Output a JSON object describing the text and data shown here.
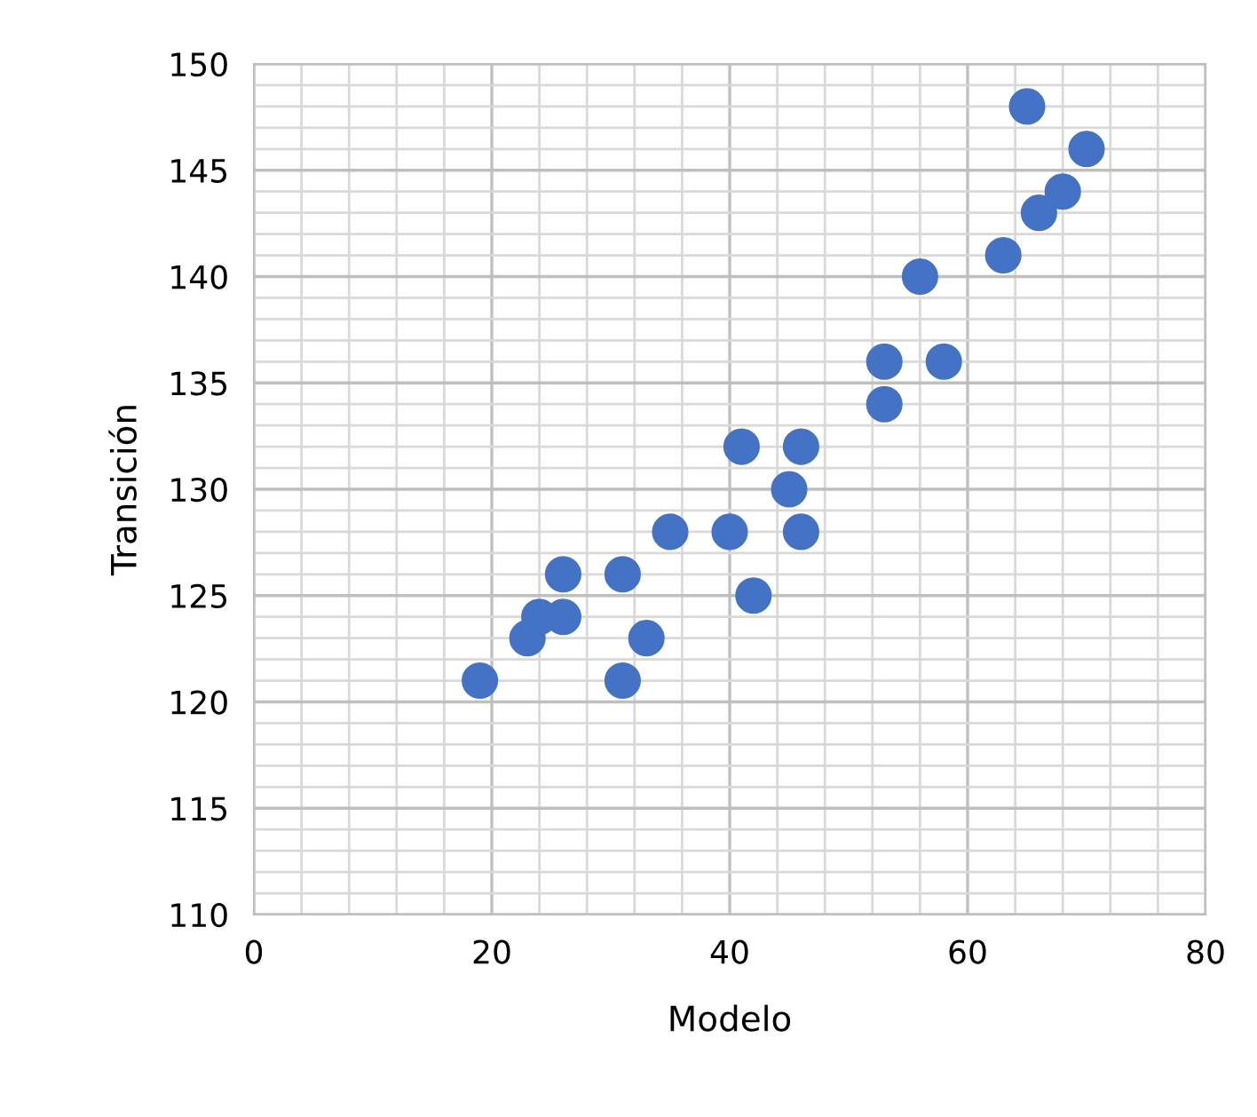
{
  "chart_data": {
    "type": "scatter",
    "xlabel": "Modelo",
    "ylabel": "Transición",
    "x": [
      19,
      23,
      24,
      26,
      26,
      31,
      31,
      33,
      35,
      40,
      41,
      42,
      45,
      46,
      46,
      53,
      53,
      56,
      58,
      63,
      65,
      66,
      68,
      70
    ],
    "series": [
      {
        "color": "#4472c4",
        "values": [
          121,
          123,
          124,
          124,
          126,
          126,
          121,
          123,
          128,
          128,
          132,
          125,
          130,
          132,
          128,
          136,
          134,
          140,
          136,
          141,
          148,
          143,
          144,
          146
        ]
      }
    ],
    "xlim": [
      0,
      80
    ],
    "ylim": [
      110,
      150
    ],
    "xticks": [
      0,
      20,
      40,
      60,
      80
    ],
    "yticks": [
      110,
      115,
      120,
      125,
      130,
      135,
      140,
      145,
      150
    ],
    "grid": true,
    "marker": "circle",
    "legend": false
  }
}
